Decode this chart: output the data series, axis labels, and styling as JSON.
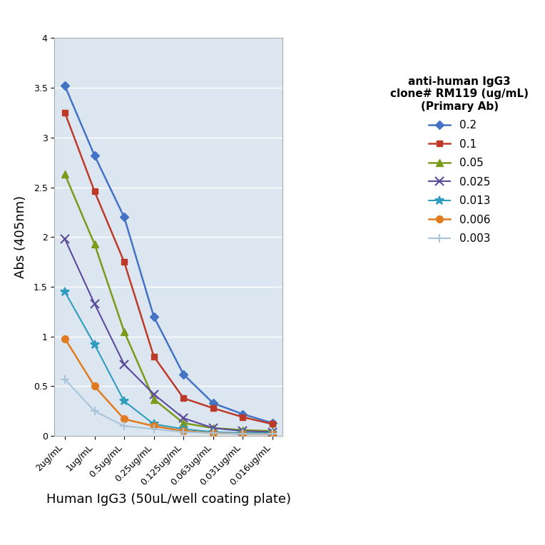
{
  "x_labels": [
    "2ug/mL",
    "1ug/mL",
    "0.5ug/mL",
    "0.25ug/mL",
    "0.125ug/mL",
    "0.063ug/mL",
    "0.031ug/mL",
    "0.016ug/mL"
  ],
  "series": [
    {
      "label": "0.2",
      "color": "#4472C4",
      "marker": "D",
      "markersize": 6,
      "values": [
        3.52,
        2.82,
        2.2,
        1.2,
        0.62,
        0.33,
        0.22,
        0.13
      ]
    },
    {
      "label": "0.1",
      "color": "#BE3A28",
      "marker": "s",
      "markersize": 6,
      "values": [
        3.25,
        2.46,
        1.75,
        0.8,
        0.38,
        0.28,
        0.19,
        0.12
      ]
    },
    {
      "label": "0.05",
      "color": "#7A9A1A",
      "marker": "^",
      "markersize": 7,
      "values": [
        2.63,
        1.93,
        1.05,
        0.37,
        0.13,
        0.08,
        0.06,
        0.05
      ]
    },
    {
      "label": "0.025",
      "color": "#5B4A9A",
      "marker": "x",
      "markersize": 8,
      "linewidth": 1.5,
      "values": [
        1.98,
        1.33,
        0.72,
        0.42,
        0.18,
        0.08,
        0.05,
        0.04
      ]
    },
    {
      "label": "0.013",
      "color": "#2E9CBF",
      "marker": "*",
      "markersize": 9,
      "linewidth": 1.5,
      "values": [
        1.45,
        0.92,
        0.35,
        0.12,
        0.07,
        0.04,
        0.03,
        0.03
      ]
    },
    {
      "label": "0.006",
      "color": "#E07B20",
      "marker": "o",
      "markersize": 7,
      "values": [
        0.98,
        0.5,
        0.17,
        0.1,
        0.05,
        0.03,
        0.02,
        0.02
      ]
    },
    {
      "label": "0.003",
      "color": "#A8C4D8",
      "marker": "+",
      "markersize": 9,
      "linewidth": 1.5,
      "values": [
        0.57,
        0.25,
        0.1,
        0.07,
        0.04,
        0.03,
        0.02,
        0.02
      ]
    }
  ],
  "xlabel": "Human IgG3 (50uL/well coating plate)",
  "ylabel": "Abs (405nm)",
  "legend_title": "anti-human IgG3\nclone# RM119 (ug/mL)\n(Primary Ab)",
  "ylim": [
    0,
    4
  ],
  "yticks": [
    0,
    0.5,
    1.0,
    1.5,
    2.0,
    2.5,
    3.0,
    3.5,
    4.0
  ],
  "fig_bg_color": "#ffffff",
  "plot_bg_color": "#dce6f1",
  "grid_color": "#ffffff",
  "axis_label_fontsize": 13,
  "tick_fontsize": 9,
  "legend_fontsize": 11,
  "legend_title_fontsize": 11
}
